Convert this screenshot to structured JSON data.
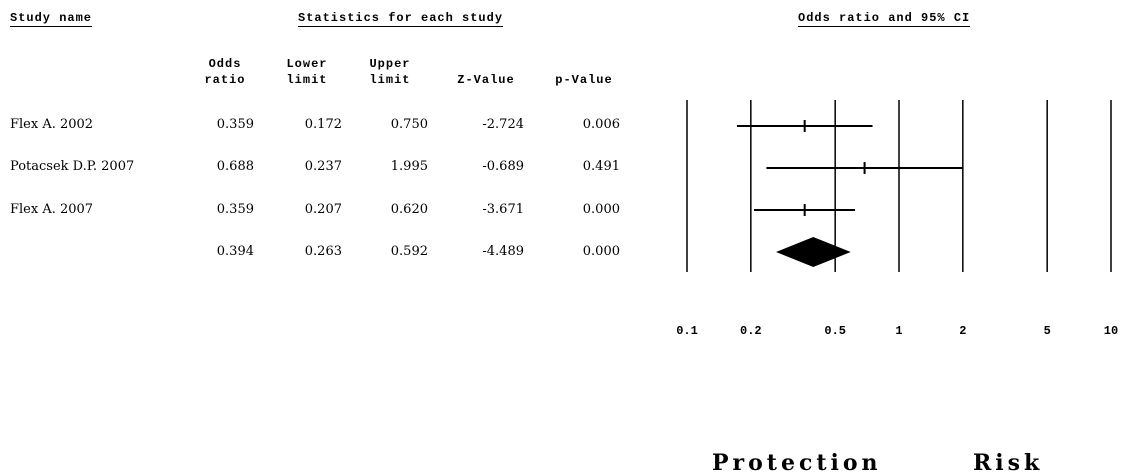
{
  "headers": {
    "study_name": "Study name",
    "statistics": "Statistics for each study",
    "plot": "Odds ratio and 95% CI"
  },
  "columns": {
    "odds": "Odds\nratio",
    "lower": "Lower\nlimit",
    "upper": "Upper\nlimit",
    "z": "Z-Value",
    "p": "p-Value"
  },
  "studies": [
    {
      "name": "Flex A. 2002",
      "odds": "0.359",
      "lower": "0.172",
      "upper": "0.750",
      "z": "-2.724",
      "p": "0.006"
    },
    {
      "name": "Potacsek D.P. 2007",
      "odds": "0.688",
      "lower": "0.237",
      "upper": "1.995",
      "z": "-0.689",
      "p": "0.491"
    },
    {
      "name": "Flex A. 2007",
      "odds": "0.359",
      "lower": "0.207",
      "upper": "0.620",
      "z": "-3.671",
      "p": "0.000"
    },
    {
      "name": "",
      "odds": "0.394",
      "lower": "0.263",
      "upper": "0.592",
      "z": "-4.489",
      "p": "0.000"
    }
  ],
  "labels": {
    "protection": "Protection",
    "risk": "Risk"
  },
  "chart_data": {
    "type": "forest",
    "title": "Odds ratio and 95% CI",
    "x_scale": "log",
    "xlim": [
      0.1,
      10
    ],
    "ticks": [
      0.1,
      0.2,
      0.5,
      1,
      2,
      5,
      10
    ],
    "tick_labels": [
      "0.1",
      "0.2",
      "0.5",
      "1",
      "2",
      "5",
      "10"
    ],
    "studies": [
      {
        "name": "Flex A. 2002",
        "or": 0.359,
        "lower": 0.172,
        "upper": 0.75
      },
      {
        "name": "Potacsek D.P. 2007",
        "or": 0.688,
        "lower": 0.237,
        "upper": 1.995
      },
      {
        "name": "Flex A. 2007",
        "or": 0.359,
        "lower": 0.207,
        "upper": 0.62
      }
    ],
    "summary": {
      "or": 0.394,
      "lower": 0.263,
      "upper": 0.592
    },
    "grid": true
  }
}
